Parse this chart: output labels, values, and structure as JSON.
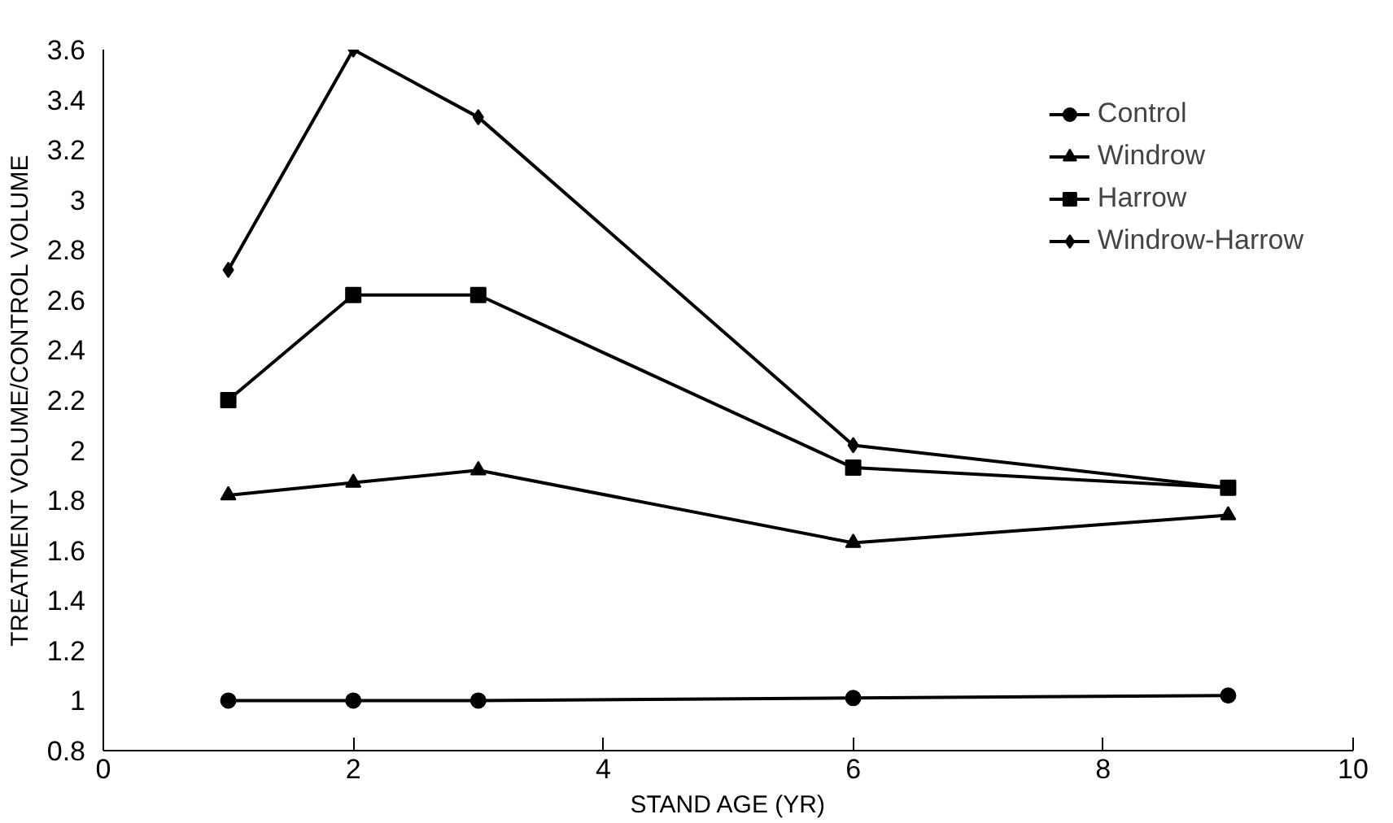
{
  "chart_data": {
    "type": "line",
    "xlabel": "STAND AGE (YR)",
    "ylabel": "TREATMENT VOLUME/CONTROL VOLUME",
    "x": [
      1,
      2,
      3,
      6,
      9
    ],
    "series": [
      {
        "name": "Control",
        "color": "#000000",
        "marker": "circle",
        "values": [
          1.0,
          1.0,
          1.0,
          1.01,
          1.02
        ]
      },
      {
        "name": "Windrow",
        "color": "#000000",
        "marker": "triangle",
        "values": [
          1.82,
          1.87,
          1.92,
          1.63,
          1.74
        ]
      },
      {
        "name": "Harrow",
        "color": "#000000",
        "marker": "square",
        "values": [
          2.2,
          2.62,
          2.62,
          1.93,
          1.85
        ]
      },
      {
        "name": "Windrow-Harrow",
        "color": "#000000",
        "marker": "diamond",
        "values": [
          2.72,
          3.6,
          3.33,
          2.02,
          1.85
        ]
      }
    ],
    "xlim": [
      0,
      10
    ],
    "xticks": [
      0,
      2,
      4,
      6,
      8,
      10
    ],
    "ylim": [
      0.8,
      3.6
    ],
    "yticks": [
      0.8,
      1,
      1.2,
      1.4,
      1.6,
      1.8,
      2,
      2.2,
      2.4,
      2.6,
      2.8,
      3,
      3.2,
      3.4,
      3.6
    ],
    "grid": false,
    "legend": "top right",
    "line_style": "solid"
  }
}
